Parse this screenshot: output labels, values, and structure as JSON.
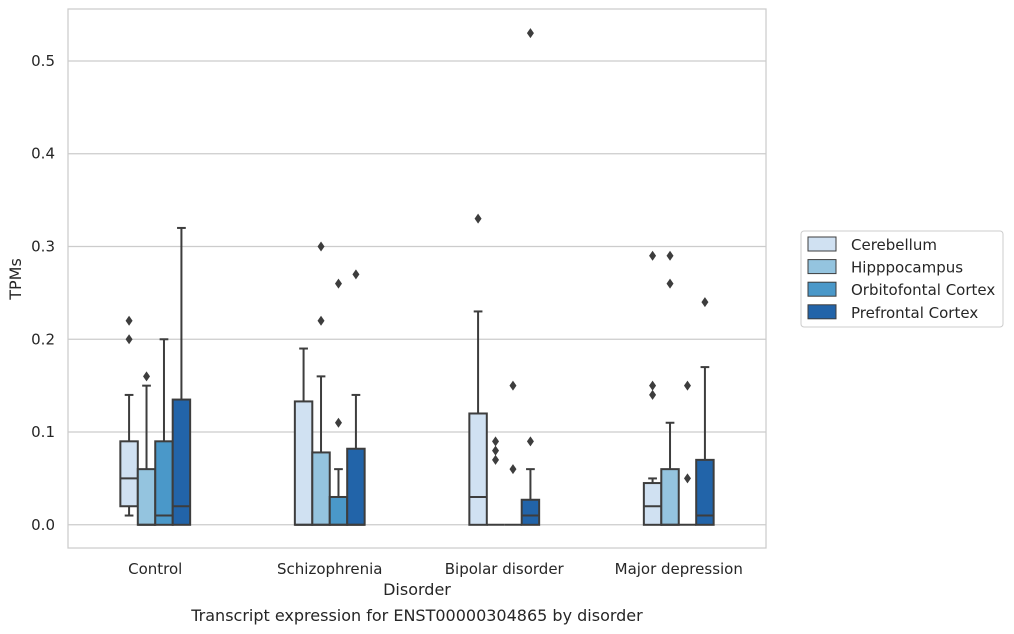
{
  "caption": "Transcript expression for ENST00000304865 by disorder",
  "chart_data": {
    "type": "box",
    "xlabel": "Disorder",
    "ylabel": "TPMs",
    "ylim": [
      -0.025,
      0.556
    ],
    "yticks": [
      0.0,
      0.1,
      0.2,
      0.3,
      0.4,
      0.5
    ],
    "ytick_labels": [
      "0.0",
      "0.1",
      "0.2",
      "0.3",
      "0.4",
      "0.5"
    ],
    "grid": "horizontal",
    "legend_position": "right",
    "categories": [
      "Control",
      "Schizophrenia",
      "Bipolar disorder",
      "Major depression"
    ],
    "series": [
      {
        "name": "Cerebellum",
        "color": "#d0e1f2",
        "boxes": [
          {
            "min": 0.01,
            "q1": 0.02,
            "median": 0.05,
            "q3": 0.09,
            "max": 0.14,
            "outliers": [
              0.2,
              0.22
            ]
          },
          {
            "min": 0.0,
            "q1": 0.0,
            "median": 0.0,
            "q3": 0.133,
            "max": 0.19,
            "outliers": []
          },
          {
            "min": 0.0,
            "q1": 0.0,
            "median": 0.03,
            "q3": 0.12,
            "max": 0.23,
            "outliers": [
              0.33
            ]
          },
          {
            "min": 0.0,
            "q1": 0.0,
            "median": 0.02,
            "q3": 0.045,
            "max": 0.05,
            "outliers": [
              0.14,
              0.15,
              0.29
            ]
          }
        ]
      },
      {
        "name": "Hipppocampus",
        "color": "#94c4df",
        "boxes": [
          {
            "min": 0.0,
            "q1": 0.0,
            "median": 0.0,
            "q3": 0.06,
            "max": 0.15,
            "outliers": [
              0.16
            ]
          },
          {
            "min": 0.0,
            "q1": 0.0,
            "median": 0.0,
            "q3": 0.078,
            "max": 0.16,
            "outliers": [
              0.22,
              0.3
            ]
          },
          {
            "min": 0.0,
            "q1": 0.0,
            "median": 0.0,
            "q3": 0.0,
            "max": 0.0,
            "outliers": [
              0.07,
              0.08,
              0.09
            ]
          },
          {
            "min": 0.0,
            "q1": 0.0,
            "median": 0.0,
            "q3": 0.06,
            "max": 0.11,
            "outliers": [
              0.26,
              0.29
            ]
          }
        ]
      },
      {
        "name": "Orbitofontal Cortex",
        "color": "#4a98c9",
        "boxes": [
          {
            "min": 0.0,
            "q1": 0.0,
            "median": 0.01,
            "q3": 0.09,
            "max": 0.2,
            "outliers": []
          },
          {
            "min": 0.0,
            "q1": 0.0,
            "median": 0.0,
            "q3": 0.03,
            "max": 0.06,
            "outliers": [
              0.11,
              0.26
            ]
          },
          {
            "min": 0.0,
            "q1": 0.0,
            "median": 0.0,
            "q3": 0.0,
            "max": 0.0,
            "outliers": [
              0.06,
              0.15
            ]
          },
          {
            "min": 0.0,
            "q1": 0.0,
            "median": 0.0,
            "q3": 0.0,
            "max": 0.0,
            "outliers": [
              0.05,
              0.15
            ]
          }
        ]
      },
      {
        "name": "Prefrontal Cortex",
        "color": "#2264a9",
        "boxes": [
          {
            "min": 0.0,
            "q1": 0.0,
            "median": 0.02,
            "q3": 0.135,
            "max": 0.32,
            "outliers": []
          },
          {
            "min": 0.0,
            "q1": 0.0,
            "median": 0.0,
            "q3": 0.082,
            "max": 0.14,
            "outliers": [
              0.27
            ]
          },
          {
            "min": 0.0,
            "q1": 0.0,
            "median": 0.01,
            "q3": 0.027,
            "max": 0.06,
            "outliers": [
              0.09,
              0.53
            ]
          },
          {
            "min": 0.0,
            "q1": 0.0,
            "median": 0.01,
            "q3": 0.07,
            "max": 0.17,
            "outliers": [
              0.24
            ]
          }
        ]
      }
    ]
  }
}
